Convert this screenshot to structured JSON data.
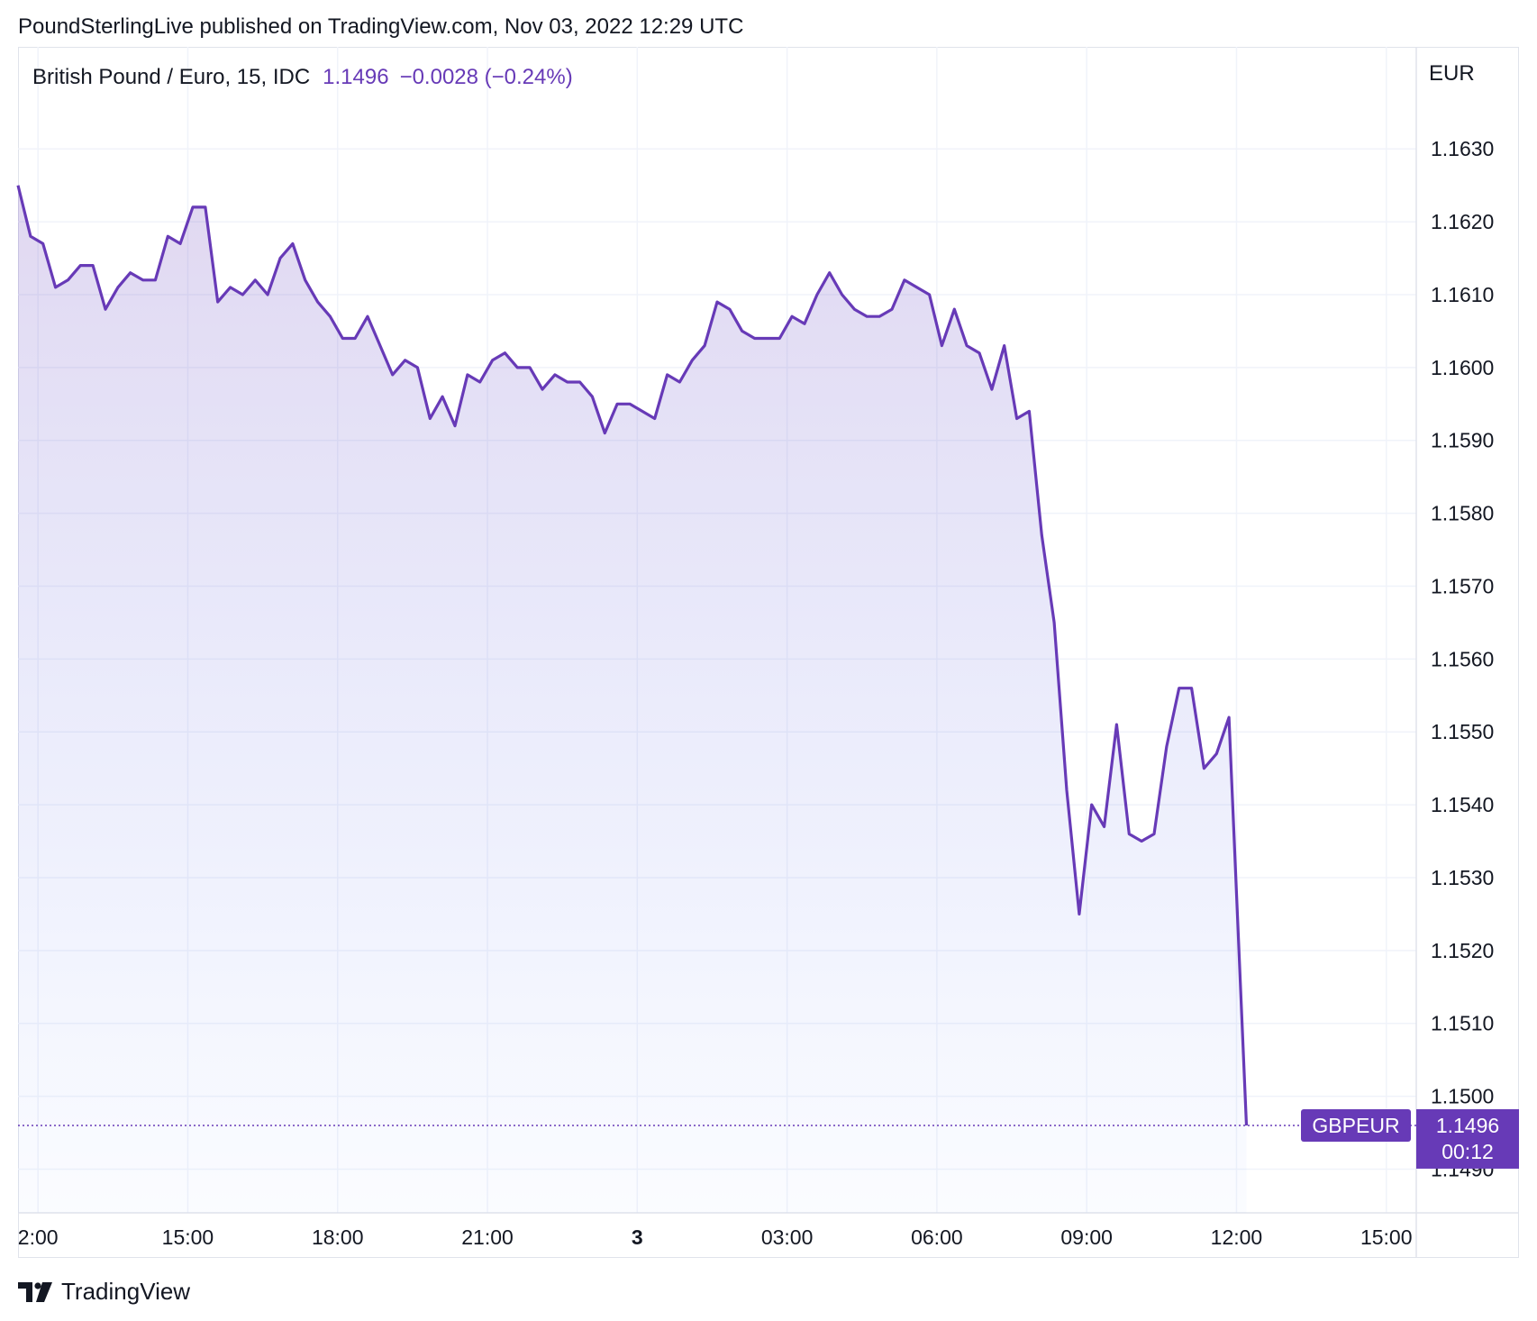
{
  "header": {
    "published": "PoundSterlingLive published on TradingView.com, Nov 03, 2022 12:29 UTC"
  },
  "legend": {
    "symbol": "British Pound / Euro, 15, IDC",
    "last": "1.1496",
    "change": "−0.0028 (−0.24%)"
  },
  "footer": {
    "brand": "TradingView",
    "logo_icon": "tradingview-logo-icon"
  },
  "colors": {
    "line": "#673ab7",
    "label_bg": "#673ab7",
    "grid": "#f0f3fa",
    "text": "#131722"
  },
  "chart_data": {
    "type": "area",
    "y_axis_title": "EUR",
    "ylim": [
      1.1484,
      1.1644
    ],
    "y_ticks": [
      1.163,
      1.162,
      1.161,
      1.16,
      1.159,
      1.158,
      1.157,
      1.156,
      1.155,
      1.154,
      1.153,
      1.152,
      1.151,
      1.15,
      1.149
    ],
    "y_tick_labels": [
      "1.1630",
      "1.1620",
      "1.1610",
      "1.1600",
      "1.1590",
      "1.1580",
      "1.1570",
      "1.1560",
      "1.1550",
      "1.1540",
      "1.1530",
      "1.1520",
      "1.1510",
      "1.1500",
      "1.1490"
    ],
    "x_unit": "hours relative to 00:00 UTC Nov 03, 2022",
    "xlim": [
      -12.4,
      15.6
    ],
    "x_ticks": [
      -12,
      -9,
      -6,
      -3,
      0,
      3,
      6,
      9,
      12,
      15
    ],
    "x_tick_labels": [
      "2:00",
      "15:00",
      "18:00",
      "21:00",
      "3",
      "03:00",
      "06:00",
      "09:00",
      "12:00",
      "15:00"
    ],
    "x_tick_bold": [
      false,
      false,
      false,
      false,
      true,
      false,
      false,
      false,
      false,
      false
    ],
    "grid": true,
    "series": [
      {
        "x": [
          -12.4,
          -12.15,
          -11.9,
          -11.65,
          -11.4,
          -11.15,
          -10.9,
          -10.65,
          -10.4,
          -10.15,
          -9.9,
          -9.65,
          -9.4,
          -9.15,
          -8.9,
          -8.65,
          -8.4,
          -8.15,
          -7.9,
          -7.65,
          -7.4,
          -7.15,
          -6.9,
          -6.65,
          -6.4,
          -6.15,
          -5.9,
          -5.65,
          -5.4,
          -5.15,
          -4.9,
          -4.65,
          -4.4,
          -4.15,
          -3.9,
          -3.65,
          -3.4,
          -3.15,
          -2.9,
          -2.65,
          -2.4,
          -2.15,
          -1.9,
          -1.65,
          -1.4,
          -1.15,
          -0.9,
          -0.65,
          -0.4,
          -0.15,
          0.1,
          0.35,
          0.6,
          0.85,
          1.1,
          1.35,
          1.6,
          1.85,
          2.1,
          2.35,
          2.6,
          2.85,
          3.1,
          3.35,
          3.6,
          3.85,
          4.1,
          4.35,
          4.6,
          4.85,
          5.1,
          5.35,
          5.6,
          5.85,
          6.1,
          6.35,
          6.6,
          6.85,
          7.1,
          7.35,
          7.6,
          7.85,
          8.1,
          8.35,
          8.6,
          8.85,
          9.1,
          9.35,
          9.6,
          9.85,
          10.1,
          10.35,
          10.6,
          10.85,
          11.1,
          11.35,
          11.6,
          11.85,
          12.2
        ],
        "values": [
          1.1625,
          1.1618,
          1.1617,
          1.1611,
          1.1612,
          1.1614,
          1.1614,
          1.1608,
          1.1611,
          1.1613,
          1.1612,
          1.1612,
          1.1618,
          1.1617,
          1.1622,
          1.1622,
          1.1609,
          1.1611,
          1.161,
          1.1612,
          1.161,
          1.1615,
          1.1617,
          1.1612,
          1.1609,
          1.1607,
          1.1604,
          1.1604,
          1.1607,
          1.1603,
          1.1599,
          1.1601,
          1.16,
          1.1593,
          1.1596,
          1.1592,
          1.1599,
          1.1598,
          1.1601,
          1.1602,
          1.16,
          1.16,
          1.1597,
          1.1599,
          1.1598,
          1.1598,
          1.1596,
          1.1591,
          1.1595,
          1.1595,
          1.1594,
          1.1593,
          1.1599,
          1.1598,
          1.1601,
          1.1603,
          1.1609,
          1.1608,
          1.1605,
          1.1604,
          1.1604,
          1.1604,
          1.1607,
          1.1606,
          1.161,
          1.1613,
          1.161,
          1.1608,
          1.1607,
          1.1607,
          1.1608,
          1.1612,
          1.1611,
          1.161,
          1.1603,
          1.1608,
          1.1603,
          1.1602,
          1.1597,
          1.1603,
          1.1593,
          1.1594,
          1.1577,
          1.1565,
          1.1542,
          1.1525,
          1.154,
          1.1537,
          1.1551,
          1.1536,
          1.1535,
          1.1536,
          1.1548,
          1.1556,
          1.1556,
          1.1545,
          1.1547,
          1.1552,
          1.1496
        ]
      }
    ],
    "last_price": {
      "value": 1.1496,
      "symbol_label": "GBPEUR",
      "price_label": "1.1496",
      "countdown_label": "00:12"
    }
  }
}
